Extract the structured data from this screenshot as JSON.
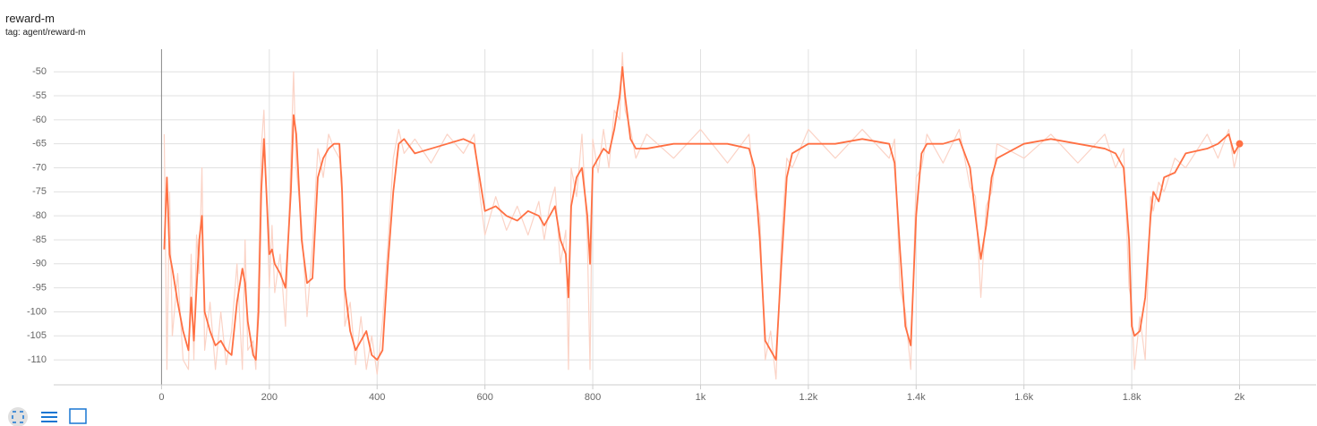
{
  "chart_data": {
    "type": "line",
    "title": "reward-m",
    "subtitle": "tag: agent/reward-m",
    "x": [
      5,
      10,
      15,
      20,
      30,
      40,
      50,
      55,
      60,
      65,
      70,
      75,
      80,
      90,
      100,
      110,
      120,
      130,
      140,
      150,
      155,
      160,
      170,
      175,
      180,
      185,
      190,
      200,
      205,
      210,
      220,
      230,
      240,
      245,
      250,
      260,
      270,
      280,
      290,
      300,
      310,
      320,
      330,
      335,
      340,
      350,
      360,
      370,
      380,
      390,
      400,
      410,
      420,
      430,
      440,
      450,
      470,
      500,
      530,
      560,
      580,
      590,
      600,
      620,
      640,
      660,
      680,
      700,
      710,
      720,
      730,
      740,
      750,
      755,
      760,
      770,
      780,
      790,
      795,
      800,
      810,
      820,
      830,
      840,
      850,
      855,
      860,
      870,
      880,
      900,
      950,
      1000,
      1050,
      1090,
      1100,
      1110,
      1120,
      1130,
      1140,
      1150,
      1160,
      1170,
      1200,
      1250,
      1300,
      1350,
      1360,
      1370,
      1380,
      1390,
      1400,
      1410,
      1420,
      1450,
      1480,
      1500,
      1510,
      1520,
      1530,
      1540,
      1550,
      1600,
      1650,
      1700,
      1750,
      1770,
      1785,
      1795,
      1800,
      1805,
      1815,
      1825,
      1835,
      1840,
      1850,
      1860,
      1880,
      1900,
      1940,
      1960,
      1980,
      1990,
      2000
    ],
    "series": [
      {
        "color": "#fbd3c6",
        "values": [
          -63,
          -112,
          -75,
          -105,
          -92,
          -110,
          -112,
          -88,
          -110,
          -84,
          -92,
          -70,
          -108,
          -98,
          -112,
          -100,
          -111,
          -104,
          -90,
          -112,
          -85,
          -108,
          -106,
          -112,
          -92,
          -66,
          -58,
          -95,
          -82,
          -96,
          -88,
          -103,
          -68,
          -50,
          -70,
          -82,
          -101,
          -86,
          -66,
          -72,
          -63,
          -66,
          -68,
          -72,
          -103,
          -98,
          -111,
          -101,
          -112,
          -105,
          -113,
          -102,
          -86,
          -68,
          -62,
          -67,
          -64,
          -69,
          -63,
          -67,
          -63,
          -75,
          -84,
          -76,
          -83,
          -78,
          -84,
          -77,
          -85,
          -78,
          -74,
          -90,
          -83,
          -112,
          -70,
          -76,
          -63,
          -85,
          -112,
          -64,
          -71,
          -62,
          -70,
          -58,
          -60,
          -46,
          -58,
          -62,
          -68,
          -63,
          -68,
          -62,
          -69,
          -63,
          -75,
          -80,
          -110,
          -104,
          -114,
          -85,
          -68,
          -70,
          -62,
          -68,
          -62,
          -68,
          -64,
          -95,
          -100,
          -112,
          -72,
          -70,
          -63,
          -69,
          -62,
          -74,
          -76,
          -97,
          -78,
          -75,
          -65,
          -68,
          -63,
          -69,
          -63,
          -70,
          -66,
          -95,
          -98,
          -112,
          -101,
          -110,
          -76,
          -79,
          -73,
          -75,
          -68,
          -70,
          -63,
          -68,
          -62,
          -70,
          -65
        ]
      },
      {
        "color": "#ff7043",
        "values": [
          -87,
          -72,
          -88,
          -91,
          -98,
          -104,
          -108,
          -97,
          -106,
          -95,
          -85,
          -80,
          -100,
          -104,
          -107,
          -106,
          -108,
          -109,
          -98,
          -91,
          -94,
          -102,
          -109,
          -110,
          -100,
          -75,
          -64,
          -88,
          -87,
          -90,
          -92,
          -95,
          -75,
          -59,
          -63,
          -85,
          -94,
          -93,
          -72,
          -68,
          -66,
          -65,
          -65,
          -75,
          -95,
          -104,
          -108,
          -106,
          -104,
          -109,
          -110,
          -108,
          -90,
          -75,
          -65,
          -64,
          -67,
          -66,
          -65,
          -64,
          -65,
          -72,
          -79,
          -78,
          -80,
          -81,
          -79,
          -80,
          -82,
          -80,
          -78,
          -85,
          -88,
          -97,
          -78,
          -72,
          -70,
          -80,
          -90,
          -70,
          -68,
          -66,
          -67,
          -62,
          -55,
          -49,
          -55,
          -64,
          -66,
          -66,
          -65,
          -65,
          -65,
          -66,
          -70,
          -85,
          -106,
          -108,
          -110,
          -90,
          -72,
          -67,
          -65,
          -65,
          -64,
          -65,
          -69,
          -87,
          -103,
          -107,
          -80,
          -67,
          -65,
          -65,
          -64,
          -70,
          -80,
          -89,
          -82,
          -72,
          -68,
          -65,
          -64,
          -65,
          -66,
          -67,
          -70,
          -85,
          -103,
          -105,
          -104,
          -97,
          -80,
          -75,
          -77,
          -72,
          -71,
          -67,
          -66,
          -65,
          -63,
          -67,
          -65
        ]
      }
    ],
    "xlim": [
      -200,
      2142
    ],
    "ylim": [
      -115.2,
      -45.3
    ],
    "xticks": [
      0,
      200,
      400,
      600,
      800,
      {
        "value": 1000,
        "label": "1k"
      },
      {
        "value": 1200,
        "label": "1.2k"
      },
      {
        "value": 1400,
        "label": "1.4k"
      },
      {
        "value": 1600,
        "label": "1.6k"
      },
      {
        "value": 1800,
        "label": "1.8k"
      },
      {
        "value": 2000,
        "label": "2k"
      }
    ],
    "yticks": [
      -110,
      -105,
      -100,
      -95,
      -90,
      -85,
      -80,
      -75,
      -70,
      -65,
      -60,
      -55,
      -50
    ],
    "grid": true
  }
}
